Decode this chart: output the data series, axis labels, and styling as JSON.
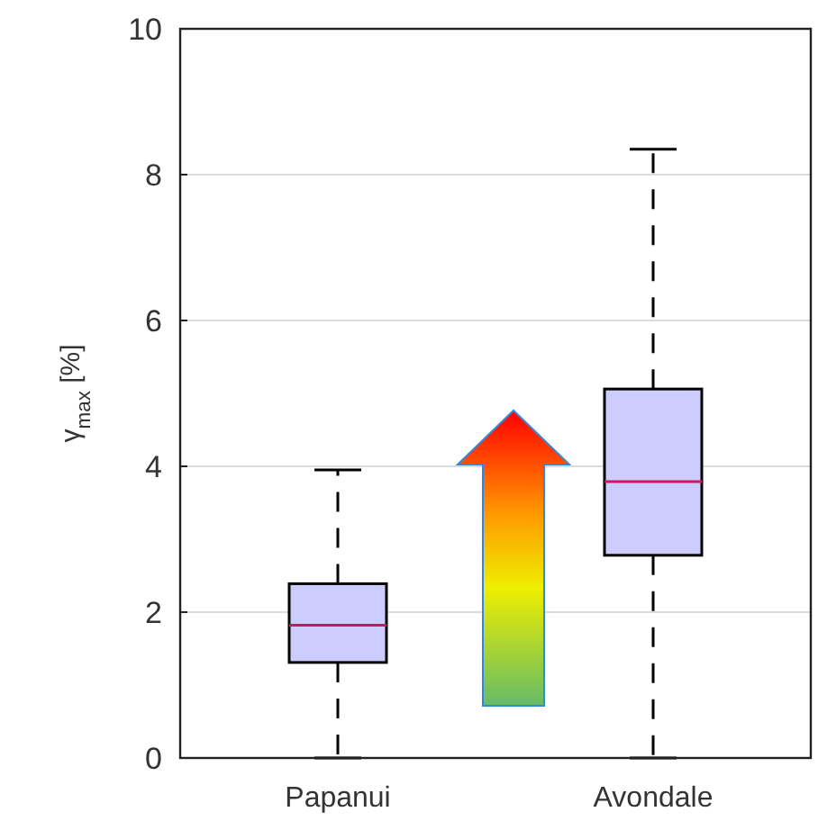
{
  "chart_data": {
    "type": "box",
    "ylabel": "γ$_{max}$ [%]",
    "categories": [
      "Papanui",
      "Avondale"
    ],
    "boxes": [
      {
        "low": 0,
        "q1": 1.31,
        "median": 1.82,
        "q3": 2.39,
        "high": 3.95
      },
      {
        "low": 0,
        "q1": 2.78,
        "median": 3.79,
        "q3": 5.06,
        "high": 8.35
      }
    ],
    "color": "#ccccff",
    "ylim": [
      0,
      10
    ],
    "yticks": [
      0,
      2,
      4,
      6,
      8,
      10
    ],
    "grid": "y"
  }
}
